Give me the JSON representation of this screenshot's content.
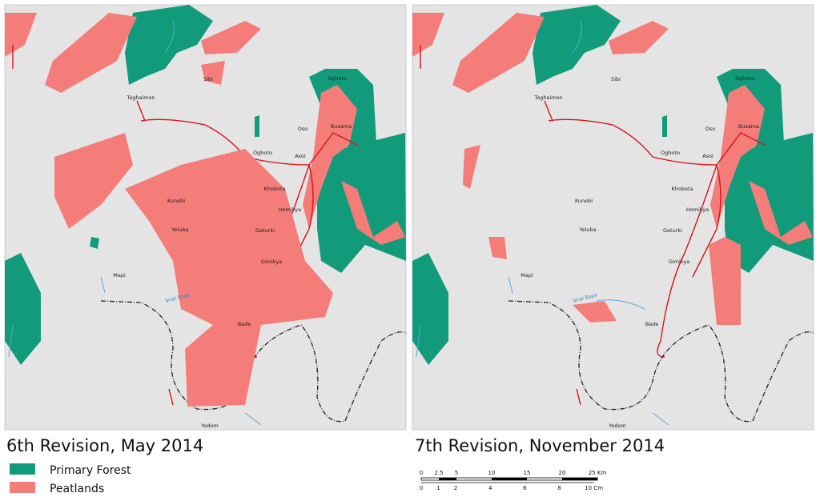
{
  "maps": [
    {
      "caption": "6th Revision, May 2014",
      "places": [
        "Sibi",
        "Taghaimon",
        "Oghoto",
        "Oso",
        "Busama",
        "Oghoto",
        "Asoi",
        "Khobota",
        "Kunebi",
        "Homikya",
        "Yeluba",
        "Geturki",
        "Gimikya",
        "Mapi",
        "Bade",
        "Yodom"
      ],
      "river": "Sirat Bapa"
    },
    {
      "caption": "7th Revision, November 2014",
      "places": [
        "Sibi",
        "Taghaimon",
        "Oghoto",
        "Oso",
        "Busama",
        "Oghoto",
        "Asoi",
        "Khobota",
        "Kunebi",
        "Homikya",
        "Yeluba",
        "Geturki",
        "Gimikya",
        "Mapi",
        "Bade",
        "Yodom"
      ],
      "river": "Sirat Bapa"
    }
  ],
  "legend": [
    {
      "label": "Primary Forest",
      "color": "#129b7b"
    },
    {
      "label": "Peatlands",
      "color": "#f47c79"
    }
  ],
  "scale": {
    "km": [
      "0",
      "2.5",
      "5",
      "10",
      "15",
      "20",
      "25 Km"
    ],
    "cm": [
      "0",
      "1",
      "2",
      "4",
      "6",
      "8",
      "10 Cm"
    ]
  }
}
